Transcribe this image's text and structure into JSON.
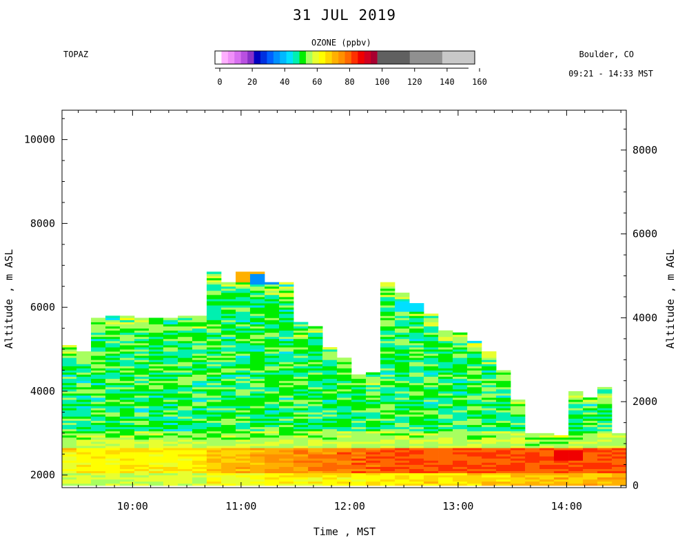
{
  "header": {
    "title": "31 JUL 2019",
    "site": "TOPAZ",
    "location": "Boulder, CO",
    "time_range": "09:21 - 14:33 MST"
  },
  "colorbar": {
    "label": "OZONE (ppbv)",
    "ticks": [
      "0",
      "20",
      "40",
      "60",
      "80",
      "100",
      "120",
      "140",
      "160"
    ],
    "tick_values": [
      0,
      20,
      40,
      60,
      80,
      100,
      120,
      140,
      160
    ],
    "bins": [
      {
        "from": 0,
        "to": 4,
        "color": "#ffffff"
      },
      {
        "from": 4,
        "to": 8,
        "color": "#ffb0ff"
      },
      {
        "from": 8,
        "to": 12,
        "color": "#f090f8"
      },
      {
        "from": 12,
        "to": 16,
        "color": "#d870f0"
      },
      {
        "from": 16,
        "to": 20,
        "color": "#b850e0"
      },
      {
        "from": 20,
        "to": 24,
        "color": "#8830c8"
      },
      {
        "from": 24,
        "to": 28,
        "color": "#0000c0"
      },
      {
        "from": 28,
        "to": 32,
        "color": "#0030e0"
      },
      {
        "from": 32,
        "to": 36,
        "color": "#0060ff"
      },
      {
        "from": 36,
        "to": 40,
        "color": "#0090ff"
      },
      {
        "from": 40,
        "to": 44,
        "color": "#00b8ff"
      },
      {
        "from": 44,
        "to": 48,
        "color": "#00e0ff"
      },
      {
        "from": 48,
        "to": 52,
        "color": "#00f0b0"
      },
      {
        "from": 52,
        "to": 56,
        "color": "#00ee00"
      },
      {
        "from": 56,
        "to": 60,
        "color": "#a8ff60"
      },
      {
        "from": 60,
        "to": 64,
        "color": "#e8ff30"
      },
      {
        "from": 64,
        "to": 68,
        "color": "#ffff00"
      },
      {
        "from": 68,
        "to": 72,
        "color": "#ffd800"
      },
      {
        "from": 72,
        "to": 76,
        "color": "#ffb000"
      },
      {
        "from": 76,
        "to": 80,
        "color": "#ff9000"
      },
      {
        "from": 80,
        "to": 84,
        "color": "#ff6800"
      },
      {
        "from": 84,
        "to": 88,
        "color": "#ff3000"
      },
      {
        "from": 88,
        "to": 92,
        "color": "#f00000"
      },
      {
        "from": 92,
        "to": 96,
        "color": "#d00020"
      },
      {
        "from": 96,
        "to": 100,
        "color": "#a80030"
      },
      {
        "from": 100,
        "to": 120,
        "color": "#606060"
      },
      {
        "from": 120,
        "to": 140,
        "color": "#909090"
      },
      {
        "from": 140,
        "to": 160,
        "color": "#c8c8c8"
      }
    ]
  },
  "chart_data": {
    "type": "heatmap",
    "xlabel": "Time , MST",
    "ylabel_left": "Altitude , m ASL",
    "ylabel_right": "Altitude , m AGL",
    "x_ticks": [
      "10:00",
      "11:00",
      "12:00",
      "13:00",
      "14:00"
    ],
    "x_tick_values": [
      10.0,
      11.0,
      12.0,
      13.0,
      14.0
    ],
    "xlim": [
      9.35,
      14.55
    ],
    "ylim_left": [
      1700,
      10700
    ],
    "y_ticks_left": [
      2000,
      4000,
      6000,
      8000,
      10000
    ],
    "ylim_right": [
      -50,
      8950
    ],
    "y_ticks_right": [
      0,
      2000,
      4000,
      6000,
      8000
    ],
    "ground_altitude_m_asl": 1750,
    "profile_width_hours": 0.1333,
    "profile_start_times": [
      9.35,
      9.483,
      9.617,
      9.75,
      9.883,
      10.017,
      10.15,
      10.283,
      10.417,
      10.55,
      10.683,
      10.817,
      10.95,
      11.083,
      11.217,
      11.35,
      11.483,
      11.617,
      11.75,
      11.883,
      12.017,
      12.15,
      12.283,
      12.417,
      12.55,
      12.683,
      12.817,
      12.95,
      13.083,
      13.217,
      13.35,
      13.483,
      13.617,
      13.75,
      13.883,
      14.017,
      14.15,
      14.283,
      14.417
    ],
    "profile_top_altitudes_m_asl": [
      5100,
      4950,
      5750,
      5780,
      5800,
      5750,
      5730,
      5730,
      5780,
      5800,
      6850,
      6600,
      6830,
      6850,
      6600,
      6570,
      5620,
      5550,
      5050,
      4800,
      4400,
      4450,
      6580,
      6330,
      6100,
      5850,
      5450,
      5380,
      5200,
      4950,
      4500,
      3800,
      3000,
      3000,
      2950,
      4000,
      3850,
      4100,
      3000
    ],
    "notable_features": [
      {
        "time": 11.0,
        "altitude": 6700,
        "ozone_ppbv": 75
      },
      {
        "time": 11.1,
        "altitude": 6650,
        "ozone_ppbv": 38
      },
      {
        "time": 12.45,
        "altitude": 6000,
        "ozone_ppbv": 46
      },
      {
        "time": 13.9,
        "altitude": 2450,
        "ozone_ppbv": 90
      }
    ],
    "layers_ppbv": [
      {
        "altitude_min": 1750,
        "altitude_max": 2600,
        "ozone_ppbv_typical": [
          66,
          82
        ]
      },
      {
        "altitude_min": 2600,
        "altitude_max": 3000,
        "ozone_ppbv_typical": [
          58,
          68
        ]
      },
      {
        "altitude_min": 3000,
        "altitude_max": 6900,
        "ozone_ppbv_typical": [
          50,
          58
        ]
      }
    ]
  }
}
